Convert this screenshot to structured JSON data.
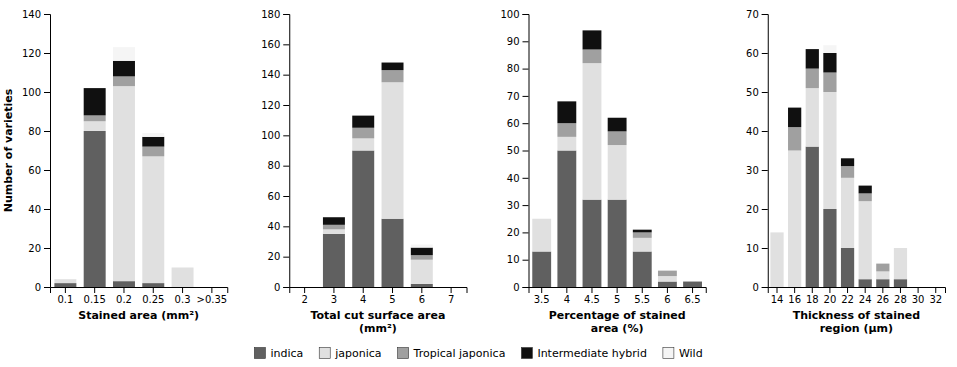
{
  "chart_data": [
    {
      "type": "bar",
      "stacked": true,
      "xlabel": "Stained area (mm²)",
      "ylabel": "Number of varieties",
      "categories": [
        "0.1",
        "0.15",
        "0.2",
        "0.25",
        "0.3",
        ">0.35"
      ],
      "ylim": [
        0,
        140
      ],
      "yticks": [
        0,
        20,
        40,
        60,
        80,
        100,
        120,
        140
      ],
      "series": [
        {
          "name": "indica",
          "color": "#606060",
          "values": [
            2,
            80,
            3,
            2,
            0,
            0
          ]
        },
        {
          "name": "japonica",
          "color": "#e0e0e0",
          "values": [
            2,
            5,
            100,
            65,
            10,
            0
          ]
        },
        {
          "name": "Tropical japonica",
          "color": "#a0a0a0",
          "values": [
            0,
            3,
            5,
            5,
            0,
            0
          ]
        },
        {
          "name": "Intermediate hybrid",
          "color": "#101010",
          "values": [
            0,
            14,
            8,
            5,
            0,
            0
          ]
        },
        {
          "name": "Wild",
          "color": "#f5f5f5",
          "values": [
            0,
            0,
            7,
            2,
            0,
            0
          ]
        }
      ]
    },
    {
      "type": "bar",
      "stacked": true,
      "xlabel": "Total cut surface area\n(mm²)",
      "categories": [
        "2",
        "3",
        "4",
        "5",
        "6",
        "7"
      ],
      "ylim": [
        0,
        180
      ],
      "yticks": [
        0,
        20,
        40,
        60,
        80,
        100,
        120,
        140,
        160,
        180
      ],
      "series": [
        {
          "name": "indica",
          "color": "#606060",
          "values": [
            0,
            35,
            90,
            45,
            2,
            0
          ]
        },
        {
          "name": "japonica",
          "color": "#e0e0e0",
          "values": [
            0,
            3,
            8,
            90,
            16,
            0
          ]
        },
        {
          "name": "Tropical japonica",
          "color": "#a0a0a0",
          "values": [
            0,
            3,
            7,
            8,
            3,
            0
          ]
        },
        {
          "name": "Intermediate hybrid",
          "color": "#101010",
          "values": [
            0,
            5,
            8,
            5,
            5,
            0
          ]
        },
        {
          "name": "Wild",
          "color": "#f5f5f5",
          "values": [
            0,
            0,
            0,
            0,
            2,
            0
          ]
        }
      ]
    },
    {
      "type": "bar",
      "stacked": true,
      "xlabel": "Percentage of stained\narea (%)",
      "categories": [
        "3.5",
        "4",
        "4.5",
        "5",
        "5.5",
        "6",
        "6.5"
      ],
      "ylim": [
        0,
        100
      ],
      "yticks": [
        0,
        10,
        20,
        30,
        40,
        50,
        60,
        70,
        80,
        90,
        100
      ],
      "series": [
        {
          "name": "indica",
          "color": "#606060",
          "values": [
            13,
            50,
            32,
            32,
            13,
            2,
            2
          ]
        },
        {
          "name": "japonica",
          "color": "#e0e0e0",
          "values": [
            12,
            5,
            50,
            20,
            5,
            2,
            0
          ]
        },
        {
          "name": "Tropical japonica",
          "color": "#a0a0a0",
          "values": [
            0,
            5,
            5,
            5,
            2,
            2,
            0
          ]
        },
        {
          "name": "Intermediate hybrid",
          "color": "#101010",
          "values": [
            0,
            8,
            7,
            5,
            1,
            0,
            0
          ]
        },
        {
          "name": "Wild",
          "color": "#f5f5f5",
          "values": [
            0,
            0,
            0,
            0,
            0,
            0,
            0
          ]
        }
      ]
    },
    {
      "type": "bar",
      "stacked": true,
      "xlabel": "Thickness of stained\nregion (μm)",
      "categories": [
        "14",
        "16",
        "18",
        "20",
        "22",
        "24",
        "26",
        "28",
        "30",
        "32"
      ],
      "ylim": [
        0,
        70
      ],
      "yticks": [
        0,
        10,
        20,
        30,
        40,
        50,
        60,
        70
      ],
      "series": [
        {
          "name": "indica",
          "color": "#606060",
          "values": [
            0,
            0,
            36,
            20,
            10,
            2,
            2,
            2,
            0,
            0
          ]
        },
        {
          "name": "japonica",
          "color": "#e0e0e0",
          "values": [
            14,
            35,
            15,
            30,
            18,
            20,
            2,
            8,
            0,
            0
          ]
        },
        {
          "name": "Tropical japonica",
          "color": "#a0a0a0",
          "values": [
            0,
            6,
            5,
            5,
            3,
            2,
            2,
            0,
            0,
            0
          ]
        },
        {
          "name": "Intermediate hybrid",
          "color": "#101010",
          "values": [
            0,
            5,
            5,
            5,
            2,
            2,
            0,
            0,
            0,
            0
          ]
        },
        {
          "name": "Wild",
          "color": "#f5f5f5",
          "values": [
            0,
            0,
            0,
            2,
            0,
            0,
            0,
            0,
            0,
            0
          ]
        }
      ]
    }
  ]
}
